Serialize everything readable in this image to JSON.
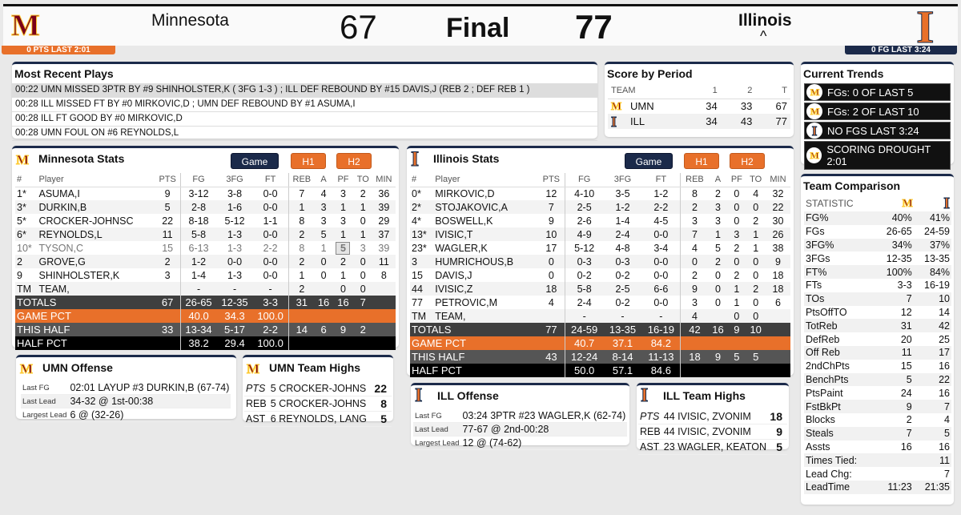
{
  "header": {
    "away_name": "Minnesota",
    "away_score": "67",
    "status": "Final",
    "home_score": "77",
    "home_name": "Illinois",
    "possession": "^",
    "away_trend": "0 PTS LAST 2:01",
    "home_trend": "0 FG LAST 3:24",
    "away_logo": "M",
    "home_logo": "I"
  },
  "colors": {
    "umn_maroon": "#7a0019",
    "umn_gold": "#ffcc33",
    "ill_orange": "#e8702a",
    "ill_navy": "#13294b"
  },
  "plays": {
    "title": "Most Recent Plays",
    "items": [
      "00:22 UMN MISSED 3PTR BY #9 SHINHOLSTER,K ( 3FG 1-3 ) ; ILL DEF REBOUND BY #15 DAVIS,J (REB 2 ; DEF REB 1 )",
      "00:28 ILL MISSED FT BY #0 MIRKOVIC,D ; UMN DEF REBOUND BY #1 ASUMA,I",
      "00:28 ILL FT GOOD BY #0 MIRKOVIC,D",
      "00:28 UMN FOUL ON #6 REYNOLDS,L"
    ]
  },
  "score_by_period": {
    "title": "Score by Period",
    "headers": [
      "TEAM",
      "1",
      "2",
      "T"
    ],
    "rows": [
      [
        "UMN",
        "34",
        "33",
        "67"
      ],
      [
        "ILL",
        "34",
        "43",
        "77"
      ]
    ]
  },
  "trends": {
    "title": "Current Trends",
    "items": [
      {
        "team": "umn",
        "text": "FGs: 0 OF LAST 5"
      },
      {
        "team": "umn",
        "text": "FGs: 2 OF LAST 10"
      },
      {
        "team": "ill",
        "text": "NO FGS LAST 3:24"
      },
      {
        "team": "umn",
        "text": "SCORING DROUGHT 2:01"
      }
    ]
  },
  "buttons": {
    "game": "Game",
    "h1": "H1",
    "h2": "H2"
  },
  "columns": [
    "#",
    "Player",
    "PTS",
    "FG",
    "3FG",
    "FT",
    "REB",
    "A",
    "PF",
    "TO",
    "MIN"
  ],
  "umn_stats": {
    "title": "Minnesota Stats",
    "players": [
      [
        "1*",
        "ASUMA,I",
        "9",
        "3-12",
        "3-8",
        "0-0",
        "7",
        "4",
        "3",
        "2",
        "36"
      ],
      [
        "3*",
        "DURKIN,B",
        "5",
        "2-8",
        "1-6",
        "0-0",
        "1",
        "3",
        "1",
        "1",
        "39"
      ],
      [
        "5*",
        "CROCKER-JOHNSC",
        "22",
        "8-18",
        "5-12",
        "1-1",
        "8",
        "3",
        "3",
        "0",
        "29"
      ],
      [
        "6*",
        "REYNOLDS,L",
        "11",
        "5-8",
        "1-3",
        "0-0",
        "2",
        "5",
        "1",
        "1",
        "37"
      ],
      [
        "10*",
        "TYSON,C",
        "15",
        "6-13",
        "1-3",
        "2-2",
        "8",
        "1",
        "5",
        "3",
        "39"
      ],
      [
        "2",
        "GROVE,G",
        "2",
        "1-2",
        "0-0",
        "0-0",
        "2",
        "0",
        "2",
        "0",
        "11"
      ],
      [
        "9",
        "SHINHOLSTER,K",
        "3",
        "1-4",
        "1-3",
        "0-0",
        "1",
        "0",
        "1",
        "0",
        "8"
      ],
      [
        "TM",
        "TEAM,",
        "",
        "-",
        "-",
        "-",
        "2",
        "",
        "0",
        "0",
        ""
      ]
    ],
    "fouled_out": "10*",
    "totals": [
      "TOTALS",
      "67",
      "26-65",
      "12-35",
      "3-3",
      "31",
      "16",
      "16",
      "7"
    ],
    "game_pct": [
      "GAME PCT",
      "40.0",
      "34.3",
      "100.0"
    ],
    "this_half": [
      "THIS HALF",
      "33",
      "13-34",
      "5-17",
      "2-2",
      "14",
      "6",
      "9",
      "2"
    ],
    "half_pct": [
      "HALF PCT",
      "38.2",
      "29.4",
      "100.0"
    ]
  },
  "ill_stats": {
    "title": "Illinois Stats",
    "players": [
      [
        "0*",
        "MIRKOVIC,D",
        "12",
        "4-10",
        "3-5",
        "1-2",
        "8",
        "2",
        "0",
        "4",
        "32"
      ],
      [
        "2*",
        "STOJAKOVIC,A",
        "7",
        "2-5",
        "1-2",
        "2-2",
        "2",
        "3",
        "0",
        "0",
        "22"
      ],
      [
        "4*",
        "BOSWELL,K",
        "9",
        "2-6",
        "1-4",
        "4-5",
        "3",
        "3",
        "0",
        "2",
        "30"
      ],
      [
        "13*",
        "IVISIC,T",
        "10",
        "4-9",
        "2-4",
        "0-0",
        "7",
        "1",
        "3",
        "1",
        "26"
      ],
      [
        "23*",
        "WAGLER,K",
        "17",
        "5-12",
        "4-8",
        "3-4",
        "4",
        "5",
        "2",
        "1",
        "38"
      ],
      [
        "3",
        "HUMRICHOUS,B",
        "0",
        "0-3",
        "0-3",
        "0-0",
        "0",
        "2",
        "0",
        "0",
        "9"
      ],
      [
        "15",
        "DAVIS,J",
        "0",
        "0-2",
        "0-2",
        "0-0",
        "2",
        "0",
        "2",
        "0",
        "18"
      ],
      [
        "44",
        "IVISIC,Z",
        "18",
        "5-8",
        "2-5",
        "6-6",
        "9",
        "0",
        "1",
        "2",
        "18"
      ],
      [
        "77",
        "PETROVIC,M",
        "4",
        "2-4",
        "0-2",
        "0-0",
        "3",
        "0",
        "1",
        "0",
        "6"
      ],
      [
        "TM",
        "TEAM,",
        "",
        "-",
        "-",
        "-",
        "4",
        "",
        "0",
        "0",
        ""
      ]
    ],
    "fouled_out": "",
    "totals": [
      "TOTALS",
      "77",
      "24-59",
      "13-35",
      "16-19",
      "42",
      "16",
      "9",
      "10"
    ],
    "game_pct": [
      "GAME PCT",
      "40.7",
      "37.1",
      "84.2"
    ],
    "this_half": [
      "THIS HALF",
      "43",
      "12-24",
      "8-14",
      "11-13",
      "18",
      "9",
      "5",
      "5"
    ],
    "half_pct": [
      "HALF PCT",
      "50.0",
      "57.1",
      "84.6"
    ]
  },
  "umn_offense": {
    "title": "UMN Offense",
    "rows": [
      [
        "Last FG",
        "02:01 LAYUP #3 DURKIN,B (67-74)"
      ],
      [
        "Last Lead",
        "34-32 @ 1st-00:38"
      ],
      [
        "Largest Lead",
        "6 @ (32-26)"
      ]
    ]
  },
  "umn_highs": {
    "title": "UMN Team Highs",
    "rows": [
      [
        "PTS",
        "5 CROCKER-JOHNS",
        "22"
      ],
      [
        "REB",
        "5 CROCKER-JOHNS",
        "8"
      ],
      [
        "AST",
        "6 REYNOLDS, LANG",
        "5"
      ]
    ]
  },
  "ill_offense": {
    "title": "ILL Offense",
    "rows": [
      [
        "Last FG",
        "03:24 3PTR #23 WAGLER,K (62-74)"
      ],
      [
        "Last Lead",
        "77-67 @ 2nd-00:28"
      ],
      [
        "Largest Lead",
        "12 @ (74-62)"
      ]
    ]
  },
  "ill_highs": {
    "title": "ILL Team Highs",
    "rows": [
      [
        "PTS",
        "44 IVISIC, ZVONIM",
        "18"
      ],
      [
        "REB",
        "44 IVISIC, ZVONIM",
        "9"
      ],
      [
        "AST",
        "23 WAGLER, KEATON",
        "5"
      ]
    ]
  },
  "comparison": {
    "title": "Team Comparison",
    "header": "STATISTIC",
    "rows": [
      [
        "FG%",
        "40%",
        "41%"
      ],
      [
        "FGs",
        "26-65",
        "24-59"
      ],
      [
        "3FG%",
        "34%",
        "37%"
      ],
      [
        "3FGs",
        "12-35",
        "13-35"
      ],
      [
        "FT%",
        "100%",
        "84%"
      ],
      [
        "FTs",
        "3-3",
        "16-19"
      ],
      [
        "TOs",
        "7",
        "10"
      ],
      [
        "PtsOffTO",
        "12",
        "14"
      ],
      [
        "TotReb",
        "31",
        "42"
      ],
      [
        "DefReb",
        "20",
        "25"
      ],
      [
        "Off Reb",
        "11",
        "17"
      ],
      [
        "2ndChPts",
        "15",
        "16"
      ],
      [
        "BenchPts",
        "5",
        "22"
      ],
      [
        "PtsPaint",
        "24",
        "16"
      ],
      [
        "FstBkPt",
        "9",
        "7"
      ],
      [
        "Blocks",
        "2",
        "4"
      ],
      [
        "Steals",
        "7",
        "5"
      ],
      [
        "Assts",
        "16",
        "16"
      ],
      [
        "Times Tied:",
        "",
        "11"
      ],
      [
        "Lead Chg:",
        "",
        "7"
      ],
      [
        "LeadTime",
        "11:23",
        "21:35"
      ]
    ]
  }
}
